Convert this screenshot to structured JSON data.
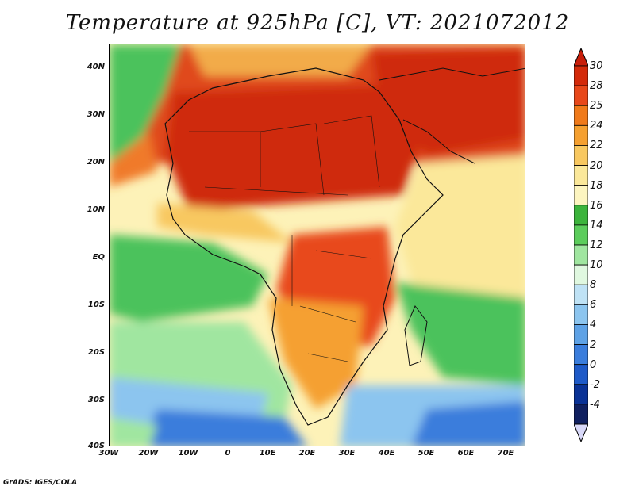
{
  "title": "Temperature at 925hPa [C], VT: 2021072012",
  "credit": "GrADS: IGES/COLA",
  "map": {
    "region": "Africa and Middle East",
    "lat_labels": [
      "40N",
      "30N",
      "20N",
      "10N",
      "EQ",
      "10S",
      "20S",
      "30S",
      "40S"
    ],
    "lon_labels": [
      "30W",
      "20W",
      "10W",
      "0",
      "10E",
      "20E",
      "30E",
      "40E",
      "50E",
      "60E",
      "70E"
    ]
  },
  "colorbar": {
    "labels": [
      "30",
      "28",
      "25",
      "24",
      "22",
      "20",
      "18",
      "16",
      "14",
      "12",
      "10",
      "8",
      "6",
      "4",
      "2",
      "0",
      "-2",
      "-4"
    ],
    "colors": [
      "#d42a0a",
      "#e8481a",
      "#f07a1a",
      "#f5a030",
      "#f8c860",
      "#fbe89a",
      "#fdf5c0",
      "#3cb43c",
      "#5ccd5c",
      "#a0e6a0",
      "#e0f8e0",
      "#bfe2f5",
      "#8cc5ef",
      "#5ea2e6",
      "#3a7ddc",
      "#1e5ac8",
      "#0a3296",
      "#102060"
    ]
  }
}
